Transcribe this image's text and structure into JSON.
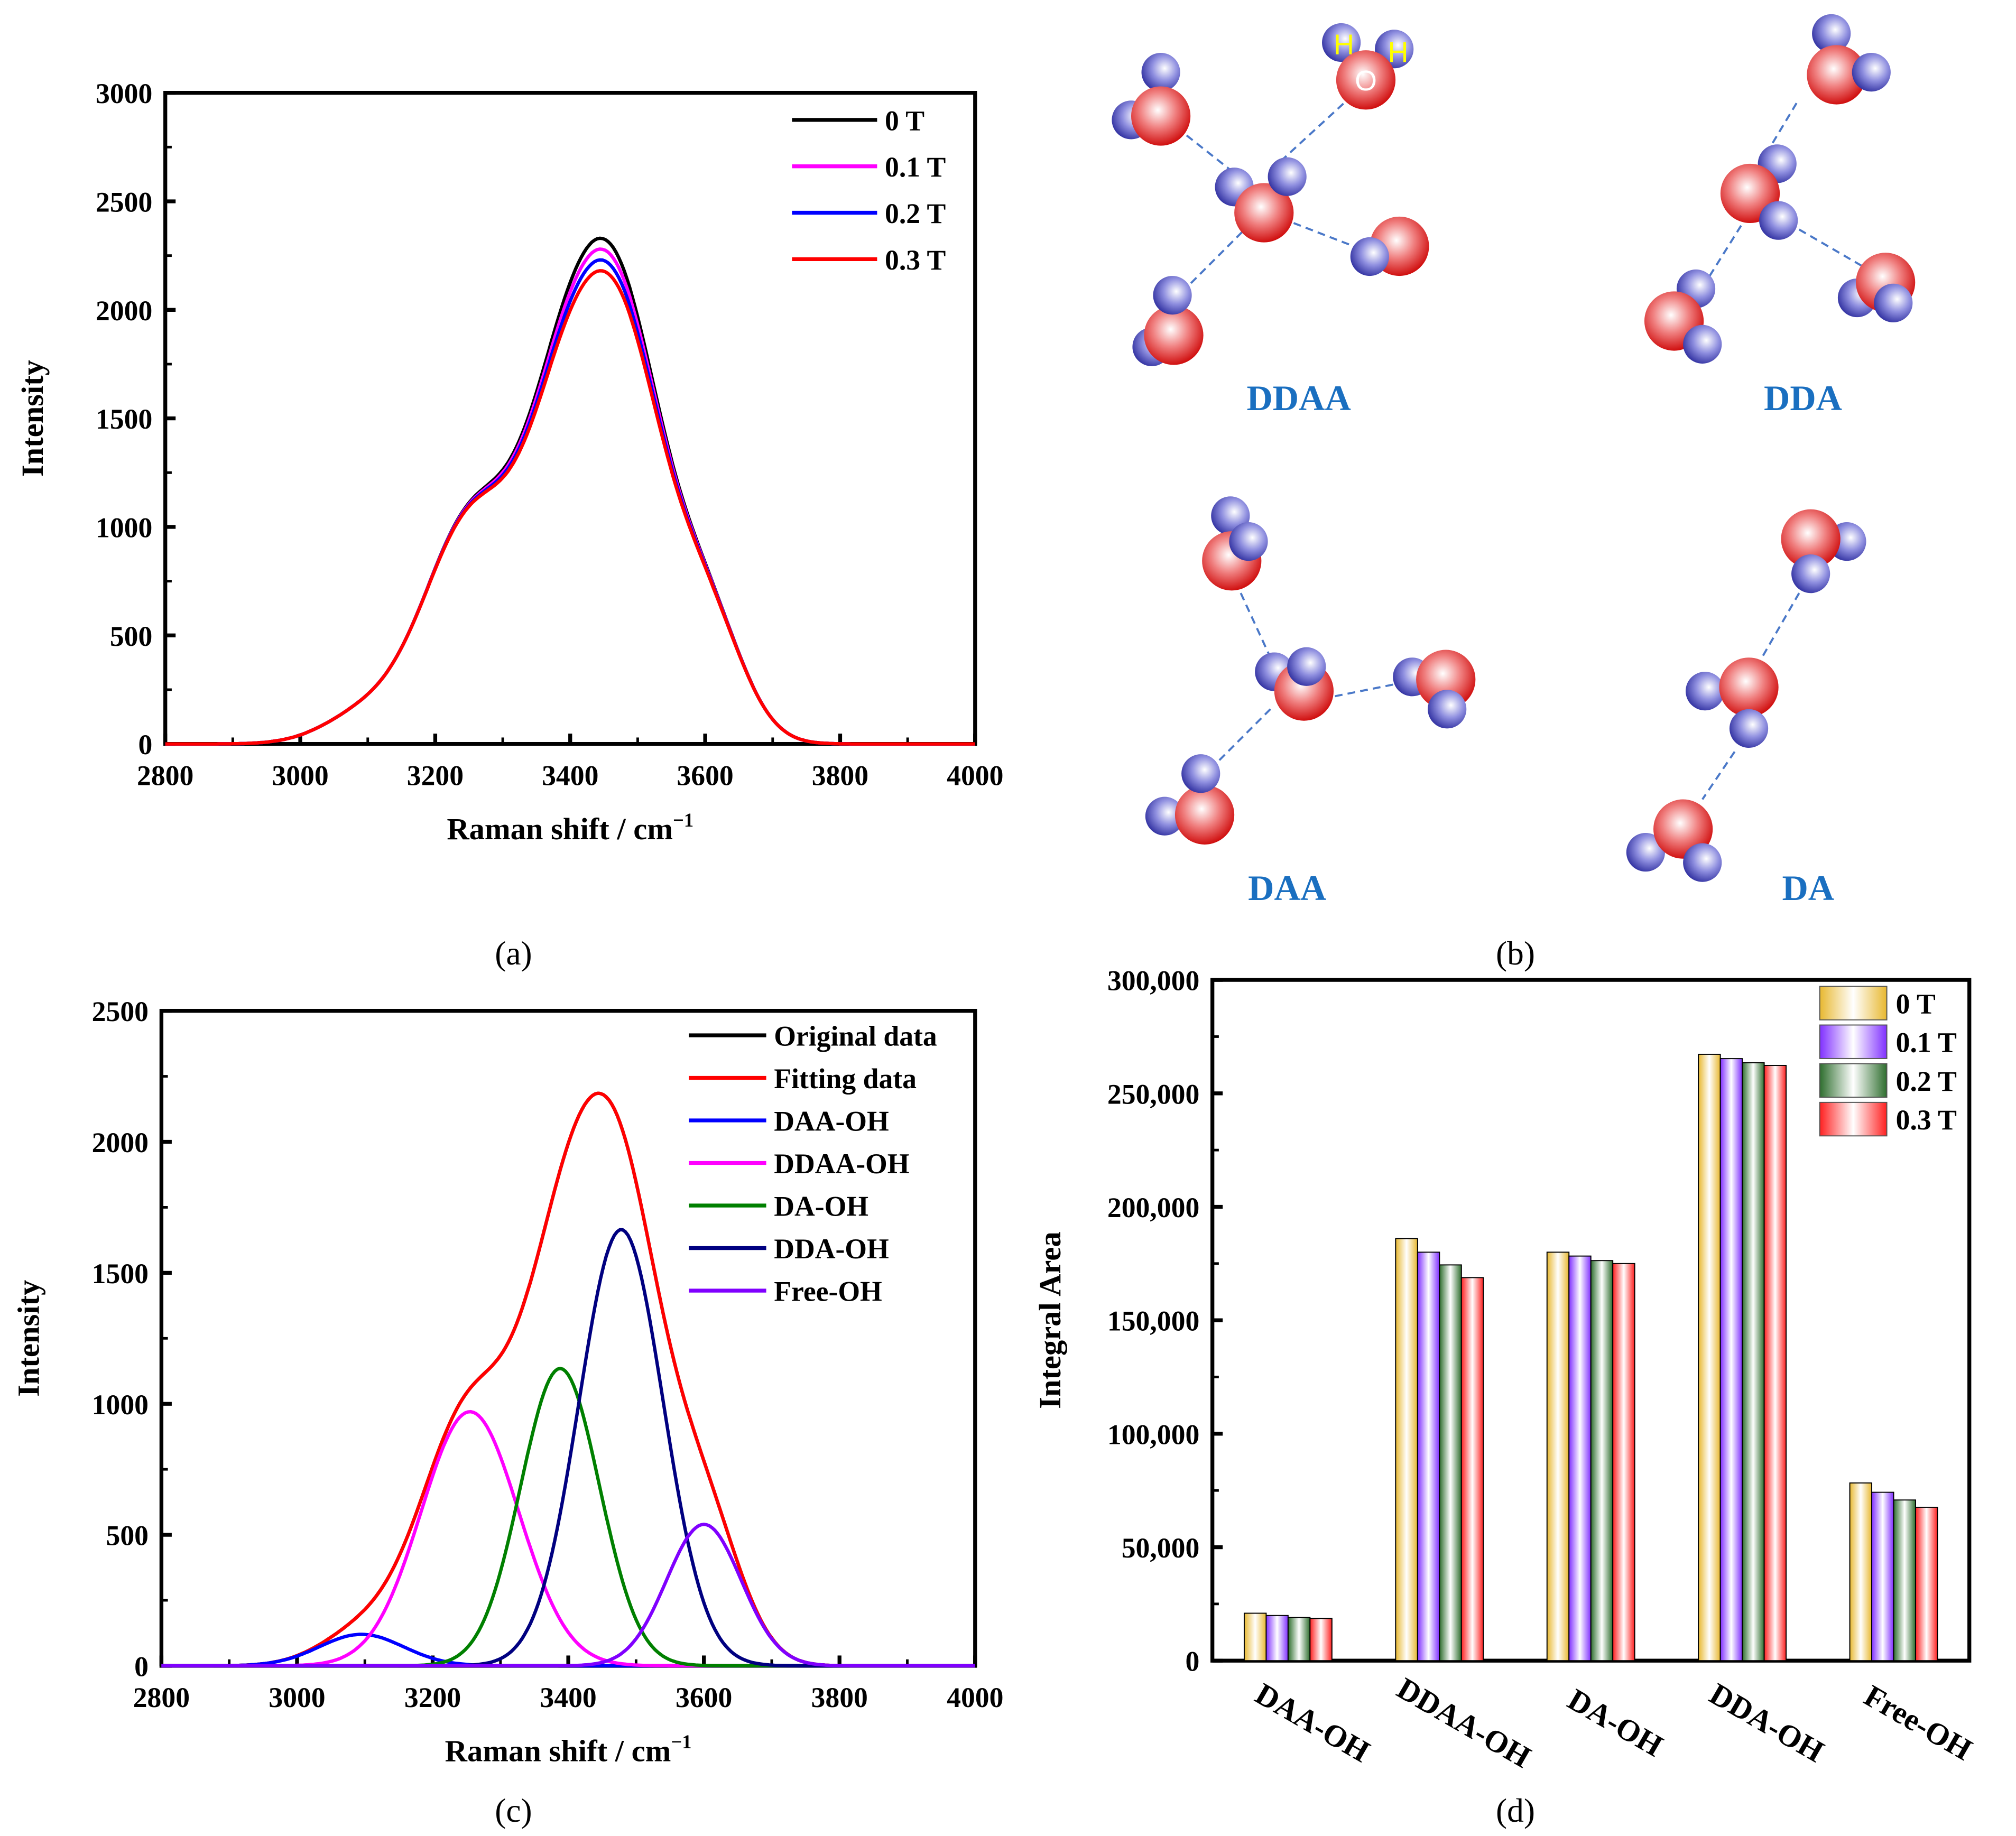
{
  "panel_labels": [
    "(a)",
    "(b)",
    "(c)",
    "(d)"
  ],
  "chart_data": [
    {
      "id": "a",
      "type": "line",
      "xlabel": "Raman shift / cm",
      "xlabel_sup": "−1",
      "ylabel": "Intensity",
      "xlim": [
        2800,
        4000
      ],
      "ylim": [
        0,
        3000
      ],
      "xticks": [
        2800,
        3000,
        3200,
        3400,
        3600,
        3800,
        4000
      ],
      "yticks": [
        0,
        500,
        1000,
        1500,
        2000,
        2500,
        3000
      ],
      "legend_position": "top-right",
      "series": [
        {
          "name": "0 T",
          "color": "#000000",
          "peak_x": 3445,
          "peak_y": 2330
        },
        {
          "name": "0.1 T",
          "color": "#ff00ff",
          "peak_x": 3445,
          "peak_y": 2280
        },
        {
          "name": "0.2 T",
          "color": "#0000ff",
          "peak_x": 3445,
          "peak_y": 2230
        },
        {
          "name": "0.3 T",
          "color": "#ff0000",
          "peak_x": 3445,
          "peak_y": 2180
        }
      ]
    },
    {
      "id": "c",
      "type": "line",
      "xlabel": "Raman shift / cm",
      "xlabel_sup": "−1",
      "ylabel": "Intensity",
      "xlim": [
        2800,
        4000
      ],
      "ylim": [
        0,
        2500
      ],
      "xticks": [
        2800,
        3000,
        3200,
        3400,
        3600,
        3800,
        4000
      ],
      "yticks": [
        0,
        500,
        1000,
        1500,
        2000,
        2500
      ],
      "legend_position": "top-right",
      "series": [
        {
          "name": "Original data",
          "color": "#000000",
          "kind": "sum"
        },
        {
          "name": "Fitting data",
          "color": "#ff0000",
          "kind": "sum"
        },
        {
          "name": "DAA-OH",
          "color": "#0000ff",
          "center": 3095,
          "amplitude": 120,
          "sigma": 62
        },
        {
          "name": "DDAA-OH",
          "color": "#ff00ff",
          "center": 3255,
          "amplitude": 970,
          "sigma": 72
        },
        {
          "name": "DA-OH",
          "color": "#008000",
          "center": 3388,
          "amplitude": 1135,
          "sigma": 58
        },
        {
          "name": "DDA-OH",
          "color": "#000080",
          "center": 3478,
          "amplitude": 1665,
          "sigma": 62
        },
        {
          "name": "Free-OH",
          "color": "#8000ff",
          "center": 3600,
          "amplitude": 540,
          "sigma": 55
        }
      ]
    },
    {
      "id": "d",
      "type": "bar",
      "ylabel": "Integral Area",
      "ylim": [
        0,
        300000
      ],
      "yticks": [
        0,
        50000,
        100000,
        150000,
        200000,
        250000,
        300000
      ],
      "ytick_labels": [
        "0",
        "50,000",
        "100,000",
        "150,000",
        "200,000",
        "250,000",
        "300,000"
      ],
      "categories": [
        "DAA-OH",
        "DDAA-OH",
        "DA-OH",
        "DDA-OH",
        "Free-OH"
      ],
      "legend_position": "top-right",
      "series": [
        {
          "name": "0 T",
          "color": "#e8b830",
          "values": [
            20900,
            186000,
            180000,
            267200,
            78300
          ]
        },
        {
          "name": "0.1 T",
          "color": "#8030ff",
          "values": [
            19900,
            180000,
            178300,
            265300,
            74200
          ]
        },
        {
          "name": "0.2 T",
          "color": "#2e6e2e",
          "values": [
            19000,
            174400,
            176300,
            263500,
            70800
          ]
        },
        {
          "name": "0.3 T",
          "color": "#ff2020",
          "values": [
            18600,
            168800,
            175000,
            262300,
            67600
          ]
        }
      ]
    }
  ],
  "structures": {
    "labels": [
      "DDAA",
      "DDA",
      "DAA",
      "DA"
    ],
    "atom_labels": {
      "h": "H",
      "o": "O"
    }
  }
}
